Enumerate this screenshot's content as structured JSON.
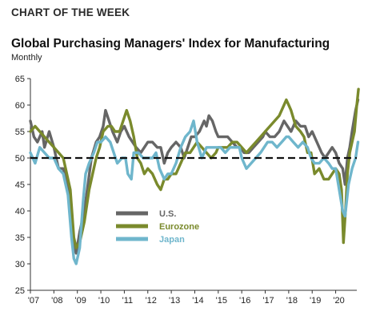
{
  "header": {
    "kicker": "CHART OF THE WEEK",
    "title": "Global Purchasing Managers' Index for Manufacturing",
    "subtitle": "Monthly"
  },
  "chart_data": {
    "type": "line",
    "title": "Global Purchasing Managers' Index for Manufacturing",
    "subtitle": "Monthly",
    "xlabel": "",
    "ylabel": "",
    "xlim": [
      2007.0,
      2020.9
    ],
    "ylim": [
      25,
      65
    ],
    "yticks": [
      25,
      30,
      35,
      40,
      45,
      50,
      55,
      60,
      65
    ],
    "xticks": [
      {
        "value": 2007,
        "label": "'07"
      },
      {
        "value": 2008,
        "label": "'08"
      },
      {
        "value": 2009,
        "label": "'09"
      },
      {
        "value": 2010,
        "label": "'10"
      },
      {
        "value": 2011,
        "label": "'11"
      },
      {
        "value": 2012,
        "label": "'12"
      },
      {
        "value": 2013,
        "label": "'13"
      },
      {
        "value": 2014,
        "label": "'14"
      },
      {
        "value": 2015,
        "label": "'15"
      },
      {
        "value": 2016,
        "label": "'16"
      },
      {
        "value": 2017,
        "label": "'17"
      },
      {
        "value": 2018,
        "label": "'18"
      },
      {
        "value": 2019,
        "label": "'19"
      },
      {
        "value": 2020,
        "label": "'20"
      }
    ],
    "reference_line": {
      "value": 50,
      "style": "dashed"
    },
    "grid": false,
    "legend": "center-left",
    "series": [
      {
        "name": "U.S.",
        "color": "#666666",
        "points": [
          [
            2007.0,
            57
          ],
          [
            2007.15,
            54
          ],
          [
            2007.3,
            53
          ],
          [
            2007.5,
            55
          ],
          [
            2007.6,
            52
          ],
          [
            2007.8,
            55
          ],
          [
            2008.0,
            52
          ],
          [
            2008.2,
            48
          ],
          [
            2008.4,
            48
          ],
          [
            2008.6,
            44
          ],
          [
            2008.75,
            38
          ],
          [
            2008.85,
            33
          ],
          [
            2008.95,
            32
          ],
          [
            2009.1,
            36
          ],
          [
            2009.3,
            40
          ],
          [
            2009.45,
            45
          ],
          [
            2009.6,
            50
          ],
          [
            2009.8,
            53
          ],
          [
            2009.95,
            54
          ],
          [
            2010.1,
            56
          ],
          [
            2010.2,
            59
          ],
          [
            2010.35,
            57
          ],
          [
            2010.5,
            55
          ],
          [
            2010.7,
            53
          ],
          [
            2010.85,
            55
          ],
          [
            2011.0,
            56
          ],
          [
            2011.2,
            54
          ],
          [
            2011.35,
            53
          ],
          [
            2011.5,
            52
          ],
          [
            2011.7,
            51
          ],
          [
            2011.85,
            52
          ],
          [
            2012.0,
            53
          ],
          [
            2012.2,
            53
          ],
          [
            2012.4,
            52
          ],
          [
            2012.55,
            52
          ],
          [
            2012.7,
            49
          ],
          [
            2012.85,
            51
          ],
          [
            2013.0,
            52
          ],
          [
            2013.2,
            53
          ],
          [
            2013.4,
            52
          ],
          [
            2013.55,
            50
          ],
          [
            2013.7,
            52
          ],
          [
            2013.85,
            54
          ],
          [
            2014.0,
            54
          ],
          [
            2014.2,
            55
          ],
          [
            2014.4,
            57
          ],
          [
            2014.5,
            56
          ],
          [
            2014.6,
            58
          ],
          [
            2014.75,
            57
          ],
          [
            2014.9,
            55
          ],
          [
            2015.0,
            54
          ],
          [
            2015.2,
            54
          ],
          [
            2015.4,
            54
          ],
          [
            2015.6,
            53
          ],
          [
            2015.8,
            52
          ],
          [
            2015.95,
            52
          ],
          [
            2016.1,
            51
          ],
          [
            2016.3,
            51
          ],
          [
            2016.5,
            52
          ],
          [
            2016.7,
            53
          ],
          [
            2016.9,
            54
          ],
          [
            2017.0,
            55
          ],
          [
            2017.2,
            54
          ],
          [
            2017.4,
            54
          ],
          [
            2017.6,
            55
          ],
          [
            2017.8,
            57
          ],
          [
            2017.95,
            56
          ],
          [
            2018.1,
            55
          ],
          [
            2018.3,
            57
          ],
          [
            2018.5,
            56
          ],
          [
            2018.7,
            56
          ],
          [
            2018.85,
            54
          ],
          [
            2019.0,
            55
          ],
          [
            2019.2,
            53
          ],
          [
            2019.4,
            51
          ],
          [
            2019.55,
            50
          ],
          [
            2019.7,
            51
          ],
          [
            2019.85,
            52
          ],
          [
            2020.0,
            51
          ],
          [
            2020.15,
            49
          ],
          [
            2020.3,
            48
          ],
          [
            2020.4,
            45
          ],
          [
            2020.5,
            50
          ],
          [
            2020.6,
            52
          ],
          [
            2020.7,
            55
          ],
          [
            2020.85,
            59
          ],
          [
            2020.95,
            61
          ]
        ]
      },
      {
        "name": "Eurozone",
        "color": "#7a8a2c",
        "points": [
          [
            2007.0,
            55
          ],
          [
            2007.2,
            56
          ],
          [
            2007.4,
            55
          ],
          [
            2007.6,
            54
          ],
          [
            2007.8,
            53
          ],
          [
            2008.0,
            52
          ],
          [
            2008.2,
            51
          ],
          [
            2008.4,
            50
          ],
          [
            2008.55,
            47
          ],
          [
            2008.7,
            44
          ],
          [
            2008.85,
            35
          ],
          [
            2008.95,
            33
          ],
          [
            2009.1,
            34
          ],
          [
            2009.3,
            38
          ],
          [
            2009.5,
            44
          ],
          [
            2009.65,
            47
          ],
          [
            2009.8,
            50
          ],
          [
            2009.95,
            52
          ],
          [
            2010.1,
            55
          ],
          [
            2010.3,
            56
          ],
          [
            2010.45,
            56
          ],
          [
            2010.6,
            55
          ],
          [
            2010.8,
            55
          ],
          [
            2010.95,
            57
          ],
          [
            2011.1,
            59
          ],
          [
            2011.25,
            57
          ],
          [
            2011.4,
            54
          ],
          [
            2011.55,
            50
          ],
          [
            2011.7,
            49
          ],
          [
            2011.85,
            47
          ],
          [
            2012.0,
            48
          ],
          [
            2012.2,
            47
          ],
          [
            2012.4,
            45
          ],
          [
            2012.55,
            44
          ],
          [
            2012.7,
            46
          ],
          [
            2012.85,
            46
          ],
          [
            2013.0,
            47
          ],
          [
            2013.2,
            47
          ],
          [
            2013.4,
            49
          ],
          [
            2013.6,
            51
          ],
          [
            2013.8,
            51
          ],
          [
            2013.95,
            52
          ],
          [
            2014.1,
            53
          ],
          [
            2014.3,
            52
          ],
          [
            2014.5,
            51
          ],
          [
            2014.7,
            50
          ],
          [
            2014.9,
            51
          ],
          [
            2015.0,
            52
          ],
          [
            2015.2,
            52
          ],
          [
            2015.4,
            52
          ],
          [
            2015.6,
            53
          ],
          [
            2015.8,
            53
          ],
          [
            2016.0,
            52
          ],
          [
            2016.2,
            51
          ],
          [
            2016.4,
            52
          ],
          [
            2016.6,
            53
          ],
          [
            2016.8,
            54
          ],
          [
            2017.0,
            55
          ],
          [
            2017.2,
            56
          ],
          [
            2017.4,
            57
          ],
          [
            2017.6,
            58
          ],
          [
            2017.8,
            60
          ],
          [
            2017.9,
            61
          ],
          [
            2018.0,
            60
          ],
          [
            2018.1,
            59
          ],
          [
            2018.3,
            56
          ],
          [
            2018.5,
            55
          ],
          [
            2018.65,
            54
          ],
          [
            2018.8,
            51
          ],
          [
            2018.95,
            51
          ],
          [
            2019.1,
            47
          ],
          [
            2019.3,
            48
          ],
          [
            2019.5,
            46
          ],
          [
            2019.7,
            46
          ],
          [
            2019.85,
            47
          ],
          [
            2020.0,
            48
          ],
          [
            2020.15,
            47
          ],
          [
            2020.25,
            44
          ],
          [
            2020.33,
            34
          ],
          [
            2020.42,
            40
          ],
          [
            2020.5,
            47
          ],
          [
            2020.6,
            51
          ],
          [
            2020.7,
            53
          ],
          [
            2020.8,
            55
          ],
          [
            2020.9,
            60
          ],
          [
            2020.97,
            63
          ]
        ]
      },
      {
        "name": "Japan",
        "color": "#6fb6cc",
        "points": [
          [
            2007.0,
            51
          ],
          [
            2007.2,
            49
          ],
          [
            2007.4,
            52
          ],
          [
            2007.6,
            51
          ],
          [
            2007.8,
            50
          ],
          [
            2008.0,
            50
          ],
          [
            2008.2,
            48
          ],
          [
            2008.4,
            47
          ],
          [
            2008.6,
            43
          ],
          [
            2008.75,
            35
          ],
          [
            2008.85,
            31
          ],
          [
            2008.95,
            30
          ],
          [
            2009.1,
            33
          ],
          [
            2009.25,
            42
          ],
          [
            2009.35,
            47
          ],
          [
            2009.5,
            49
          ],
          [
            2009.7,
            51
          ],
          [
            2009.85,
            53
          ],
          [
            2010.0,
            53
          ],
          [
            2010.2,
            54
          ],
          [
            2010.4,
            53
          ],
          [
            2010.55,
            51
          ],
          [
            2010.7,
            49
          ],
          [
            2010.9,
            50
          ],
          [
            2011.05,
            50
          ],
          [
            2011.15,
            47
          ],
          [
            2011.3,
            46
          ],
          [
            2011.4,
            51
          ],
          [
            2011.6,
            51
          ],
          [
            2011.8,
            50
          ],
          [
            2012.0,
            50
          ],
          [
            2012.2,
            50
          ],
          [
            2012.35,
            51
          ],
          [
            2012.5,
            48
          ],
          [
            2012.7,
            46
          ],
          [
            2012.85,
            47
          ],
          [
            2013.0,
            47
          ],
          [
            2013.2,
            49
          ],
          [
            2013.4,
            52
          ],
          [
            2013.6,
            54
          ],
          [
            2013.8,
            55
          ],
          [
            2013.95,
            57
          ],
          [
            2014.1,
            53
          ],
          [
            2014.3,
            50
          ],
          [
            2014.5,
            52
          ],
          [
            2014.7,
            52
          ],
          [
            2014.9,
            52
          ],
          [
            2015.1,
            52
          ],
          [
            2015.3,
            51
          ],
          [
            2015.5,
            52
          ],
          [
            2015.7,
            52
          ],
          [
            2015.9,
            52
          ],
          [
            2016.0,
            50
          ],
          [
            2016.2,
            48
          ],
          [
            2016.4,
            49
          ],
          [
            2016.6,
            50
          ],
          [
            2016.8,
            51
          ],
          [
            2016.95,
            52
          ],
          [
            2017.1,
            53
          ],
          [
            2017.3,
            53
          ],
          [
            2017.5,
            52
          ],
          [
            2017.7,
            53
          ],
          [
            2017.9,
            54
          ],
          [
            2018.0,
            54
          ],
          [
            2018.2,
            53
          ],
          [
            2018.4,
            52
          ],
          [
            2018.6,
            53
          ],
          [
            2018.8,
            52
          ],
          [
            2018.95,
            50
          ],
          [
            2019.1,
            49
          ],
          [
            2019.3,
            49
          ],
          [
            2019.5,
            50
          ],
          [
            2019.7,
            49
          ],
          [
            2019.85,
            48
          ],
          [
            2020.0,
            48
          ],
          [
            2020.15,
            44
          ],
          [
            2020.3,
            40
          ],
          [
            2020.4,
            39
          ],
          [
            2020.55,
            45
          ],
          [
            2020.7,
            48
          ],
          [
            2020.85,
            50
          ],
          [
            2020.95,
            53
          ]
        ]
      }
    ]
  }
}
